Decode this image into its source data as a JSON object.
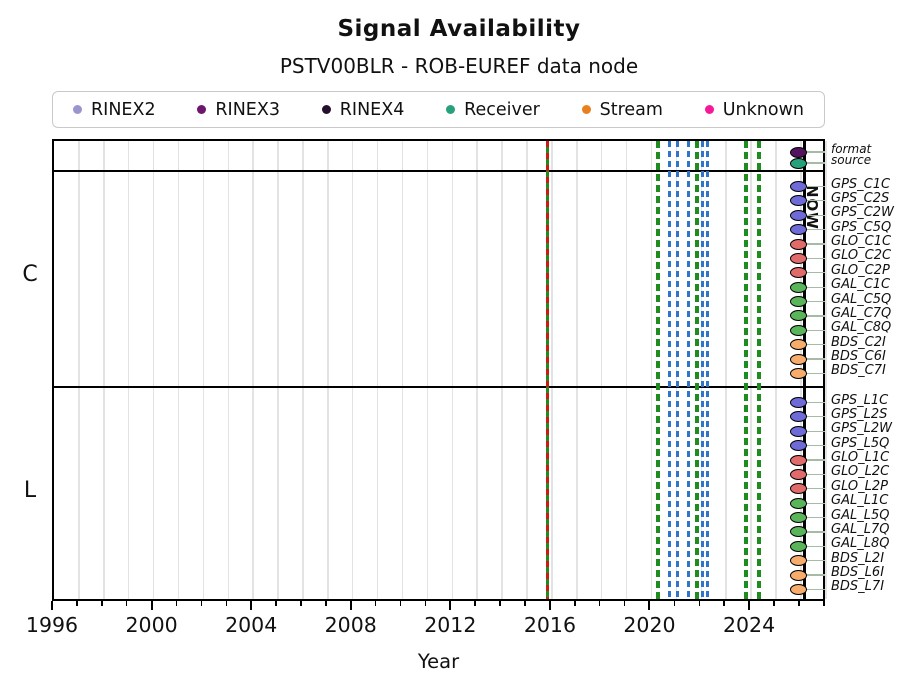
{
  "title": "Signal Availability",
  "subtitle": "PSTV00BLR - ROB-EUREF data node",
  "legend": {
    "items": [
      {
        "label": "RINEX2",
        "color": "#9a95cf"
      },
      {
        "label": "RINEX3",
        "color": "#6e156e"
      },
      {
        "label": "RINEX4",
        "color": "#26102f"
      },
      {
        "label": "Receiver",
        "color": "#27a17c"
      },
      {
        "label": "Stream",
        "color": "#e8801f"
      },
      {
        "label": "Unknown",
        "color": "#f5189a"
      }
    ]
  },
  "axes": {
    "x_label": "Year",
    "x_major_ticks": [
      1996,
      2000,
      2004,
      2008,
      2012,
      2016,
      2020,
      2024
    ],
    "x_range": [
      1996,
      2027.05
    ],
    "y_group_labels": [
      "C",
      "L"
    ]
  },
  "now_marker": {
    "label": "NOW",
    "year": 2026.15
  },
  "availability_marker_year": 2025.9,
  "rows": {
    "meta": [
      {
        "label": "format",
        "color": "#53135f"
      },
      {
        "label": "source",
        "color": "#27a17c"
      }
    ],
    "C": [
      {
        "label": "GPS_C1C",
        "color": "#6e6bd8"
      },
      {
        "label": "GPS_C2S",
        "color": "#6e6bd8"
      },
      {
        "label": "GPS_C2W",
        "color": "#6e6bd8"
      },
      {
        "label": "GPS_C5Q",
        "color": "#6e6bd8"
      },
      {
        "label": "GLO_C1C",
        "color": "#e16a6a"
      },
      {
        "label": "GLO_C2C",
        "color": "#e16a6a"
      },
      {
        "label": "GLO_C2P",
        "color": "#e16a6a"
      },
      {
        "label": "GAL_C1C",
        "color": "#5ab55a"
      },
      {
        "label": "GAL_C5Q",
        "color": "#5ab55a"
      },
      {
        "label": "GAL_C7Q",
        "color": "#5ab55a"
      },
      {
        "label": "GAL_C8Q",
        "color": "#5ab55a"
      },
      {
        "label": "BDS_C2I",
        "color": "#f8ac6b"
      },
      {
        "label": "BDS_C6I",
        "color": "#f8ac6b"
      },
      {
        "label": "BDS_C7I",
        "color": "#f8ac6b"
      }
    ],
    "L": [
      {
        "label": "GPS_L1C",
        "color": "#6e6bd8"
      },
      {
        "label": "GPS_L2S",
        "color": "#6e6bd8"
      },
      {
        "label": "GPS_L2W",
        "color": "#6e6bd8"
      },
      {
        "label": "GPS_L5Q",
        "color": "#6e6bd8"
      },
      {
        "label": "GLO_L1C",
        "color": "#e16a6a"
      },
      {
        "label": "GLO_L2C",
        "color": "#e16a6a"
      },
      {
        "label": "GLO_L2P",
        "color": "#e16a6a"
      },
      {
        "label": "GAL_L1C",
        "color": "#5ab55a"
      },
      {
        "label": "GAL_L5Q",
        "color": "#5ab55a"
      },
      {
        "label": "GAL_L7Q",
        "color": "#5ab55a"
      },
      {
        "label": "GAL_L8Q",
        "color": "#5ab55a"
      },
      {
        "label": "BDS_L2I",
        "color": "#f8ac6b"
      },
      {
        "label": "BDS_L6I",
        "color": "#f8ac6b"
      },
      {
        "label": "BDS_L7I",
        "color": "#f8ac6b"
      }
    ]
  },
  "events": [
    {
      "year": 2015.82,
      "color": "#1f8c1f",
      "style": "solid",
      "overlay_color": "#d31717",
      "overlay_style": "dashed",
      "width": 3.5
    },
    {
      "year": 2020.25,
      "color": "#1f8c1f",
      "style": "dashed",
      "width": 4
    },
    {
      "year": 2020.72,
      "color": "#2f75cc",
      "style": "dashed",
      "width": 3
    },
    {
      "year": 2021.05,
      "color": "#2f75cc",
      "style": "dashed",
      "width": 3
    },
    {
      "year": 2021.48,
      "color": "#2f75cc",
      "style": "dashed",
      "width": 3
    },
    {
      "year": 2021.84,
      "color": "#1f8c1f",
      "style": "dashed",
      "width": 4
    },
    {
      "year": 2022.06,
      "color": "#2f75cc",
      "style": "dashed",
      "width": 3
    },
    {
      "year": 2022.25,
      "color": "#2f75cc",
      "style": "dashed",
      "width": 3
    },
    {
      "year": 2023.78,
      "color": "#1f8c1f",
      "style": "dashed",
      "width": 4
    },
    {
      "year": 2024.3,
      "color": "#1f8c1f",
      "style": "dashed",
      "width": 4
    }
  ],
  "chart_data": {
    "type": "timeline",
    "title": "Signal Availability",
    "subtitle": "PSTV00BLR - ROB-EUREF data node",
    "xlabel": "Year",
    "xlim": [
      1996,
      2027
    ],
    "x_major_ticks": [
      1996,
      2000,
      2004,
      2008,
      2012,
      2016,
      2020,
      2024
    ],
    "x_minor_tick_interval_years": 1,
    "grid": "vertical gridlines every year",
    "legend_position": "top",
    "legend_entries": [
      "RINEX2",
      "RINEX3",
      "RINEX4",
      "Receiver",
      "Stream",
      "Unknown"
    ],
    "meta_rows": [
      {
        "label": "format",
        "marker_year": 2025.9,
        "marker_color_matches_legend": "RINEX3"
      },
      {
        "label": "source",
        "marker_year": 2025.9,
        "marker_color_matches_legend": "Receiver"
      }
    ],
    "groups": [
      {
        "label": "C",
        "rows": [
          "GPS_C1C",
          "GPS_C2S",
          "GPS_C2W",
          "GPS_C5Q",
          "GLO_C1C",
          "GLO_C2C",
          "GLO_C2P",
          "GAL_C1C",
          "GAL_C5Q",
          "GAL_C7Q",
          "GAL_C8Q",
          "BDS_C2I",
          "BDS_C6I",
          "BDS_C7I"
        ]
      },
      {
        "label": "L",
        "rows": [
          "GPS_L1C",
          "GPS_L2S",
          "GPS_L2W",
          "GPS_L5Q",
          "GLO_L1C",
          "GLO_L2C",
          "GLO_L2P",
          "GAL_L1C",
          "GAL_L5Q",
          "GAL_L7Q",
          "GAL_L8Q",
          "BDS_L2I",
          "BDS_L6I",
          "BDS_L7I"
        ]
      }
    ],
    "availability_markers": "each row has one short rounded marker at ~2025.9, colored by constellation (GPS blue-violet, GLO salmon, GAL green, BDS orange)",
    "vertical_event_lines": [
      {
        "year": 2015.82,
        "color": "green+red",
        "style": "solid green with red dashes"
      },
      {
        "year": 2020.25,
        "color": "green",
        "style": "dashed"
      },
      {
        "year": 2020.72,
        "color": "blue",
        "style": "dashed"
      },
      {
        "year": 2021.05,
        "color": "blue",
        "style": "dashed"
      },
      {
        "year": 2021.48,
        "color": "blue",
        "style": "dashed"
      },
      {
        "year": 2021.84,
        "color": "green",
        "style": "dashed"
      },
      {
        "year": 2022.06,
        "color": "blue",
        "style": "dashed"
      },
      {
        "year": 2022.25,
        "color": "blue",
        "style": "dashed"
      },
      {
        "year": 2023.78,
        "color": "green",
        "style": "dashed"
      },
      {
        "year": 2024.3,
        "color": "green",
        "style": "dashed"
      }
    ],
    "now_line_year": 2026.15,
    "now_line_label": "NOW"
  }
}
